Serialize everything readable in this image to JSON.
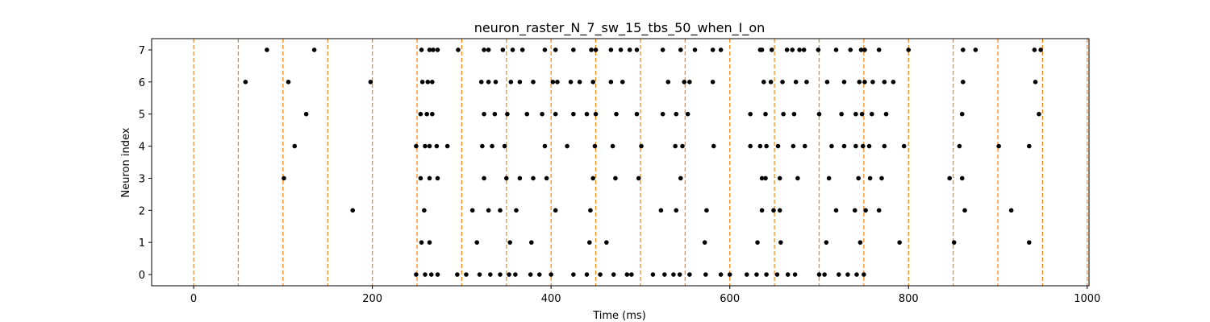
{
  "chart_data": {
    "type": "scatter",
    "title": "neuron_raster_N_7_sw_15_tbs_50_when_I_on",
    "xlabel": "Time (ms)",
    "ylabel": "Neuron index",
    "xlim": [
      -47,
      1002
    ],
    "ylim": [
      -0.35,
      7.35
    ],
    "xticks": [
      0,
      200,
      400,
      600,
      800,
      1000
    ],
    "yticks": [
      0,
      1,
      2,
      3,
      4,
      5,
      6,
      7
    ],
    "grid": false,
    "legend": "none",
    "marker_color": "#000000",
    "vline_color": "#ff7f0e",
    "vlines": [
      0,
      50,
      100,
      150,
      200,
      250,
      300,
      350,
      400,
      450,
      500,
      550,
      600,
      650,
      700,
      750,
      800,
      850,
      900,
      950,
      1000
    ],
    "spikes": [
      [
        249,
        259,
        266,
        273,
        295,
        305,
        320,
        332,
        343,
        353,
        360,
        377,
        387,
        400,
        425,
        440,
        455,
        470,
        485,
        490,
        514,
        527,
        537,
        544,
        555,
        573,
        590,
        600,
        619,
        630,
        641,
        653,
        665,
        673,
        700,
        706,
        722,
        732,
        742,
        750
      ],
      [
        255,
        264,
        317,
        354,
        378,
        443,
        462,
        572,
        631,
        657,
        708,
        746,
        790,
        851,
        935
      ],
      [
        258,
        312,
        330,
        343,
        361,
        405,
        444,
        523,
        540,
        574,
        636,
        649,
        656,
        719,
        740,
        752,
        767,
        863,
        915
      ],
      [
        254,
        264,
        273,
        325,
        350,
        365,
        380,
        395,
        447,
        472,
        498,
        545,
        636,
        656,
        676,
        711,
        744,
        757,
        770,
        846,
        860
      ],
      [
        249,
        259,
        264,
        272,
        284,
        323,
        334,
        348,
        393,
        418,
        449,
        469,
        501,
        539,
        547,
        582,
        623,
        634,
        641,
        654,
        671,
        684,
        714,
        728,
        741,
        749,
        756,
        773,
        795,
        857,
        901,
        935
      ],
      [
        126,
        254,
        261,
        267,
        325,
        337,
        351,
        373,
        390,
        405,
        425,
        440,
        450,
        473,
        496,
        525,
        540,
        553,
        623,
        640,
        660,
        672,
        700,
        725,
        741,
        748,
        759,
        775,
        860,
        946
      ],
      [
        58,
        106,
        198,
        256,
        262,
        267,
        322,
        330,
        338,
        355,
        365,
        380,
        402,
        407,
        422,
        432,
        447,
        467,
        480,
        531,
        549,
        555,
        581,
        638,
        646,
        659,
        674,
        686,
        709,
        728,
        745,
        751,
        760,
        773,
        783,
        861,
        942
      ],
      [
        82,
        135,
        255,
        264,
        268,
        273,
        296,
        325,
        330,
        346,
        357,
        368,
        393,
        405,
        425,
        445,
        450,
        467,
        478,
        488,
        496,
        525,
        545,
        561,
        581,
        590,
        634,
        647,
        664,
        670,
        678,
        683,
        699,
        719,
        735,
        747,
        751,
        767,
        800,
        861,
        875,
        941,
        948
      ]
    ],
    "extra_spikes": [
      {
        "x": 101,
        "y": 3
      },
      {
        "x": 113,
        "y": 4
      },
      {
        "x": 178,
        "y": 2
      },
      {
        "x": 640,
        "y": 3
      },
      {
        "x": 636,
        "y": 7
      }
    ]
  }
}
